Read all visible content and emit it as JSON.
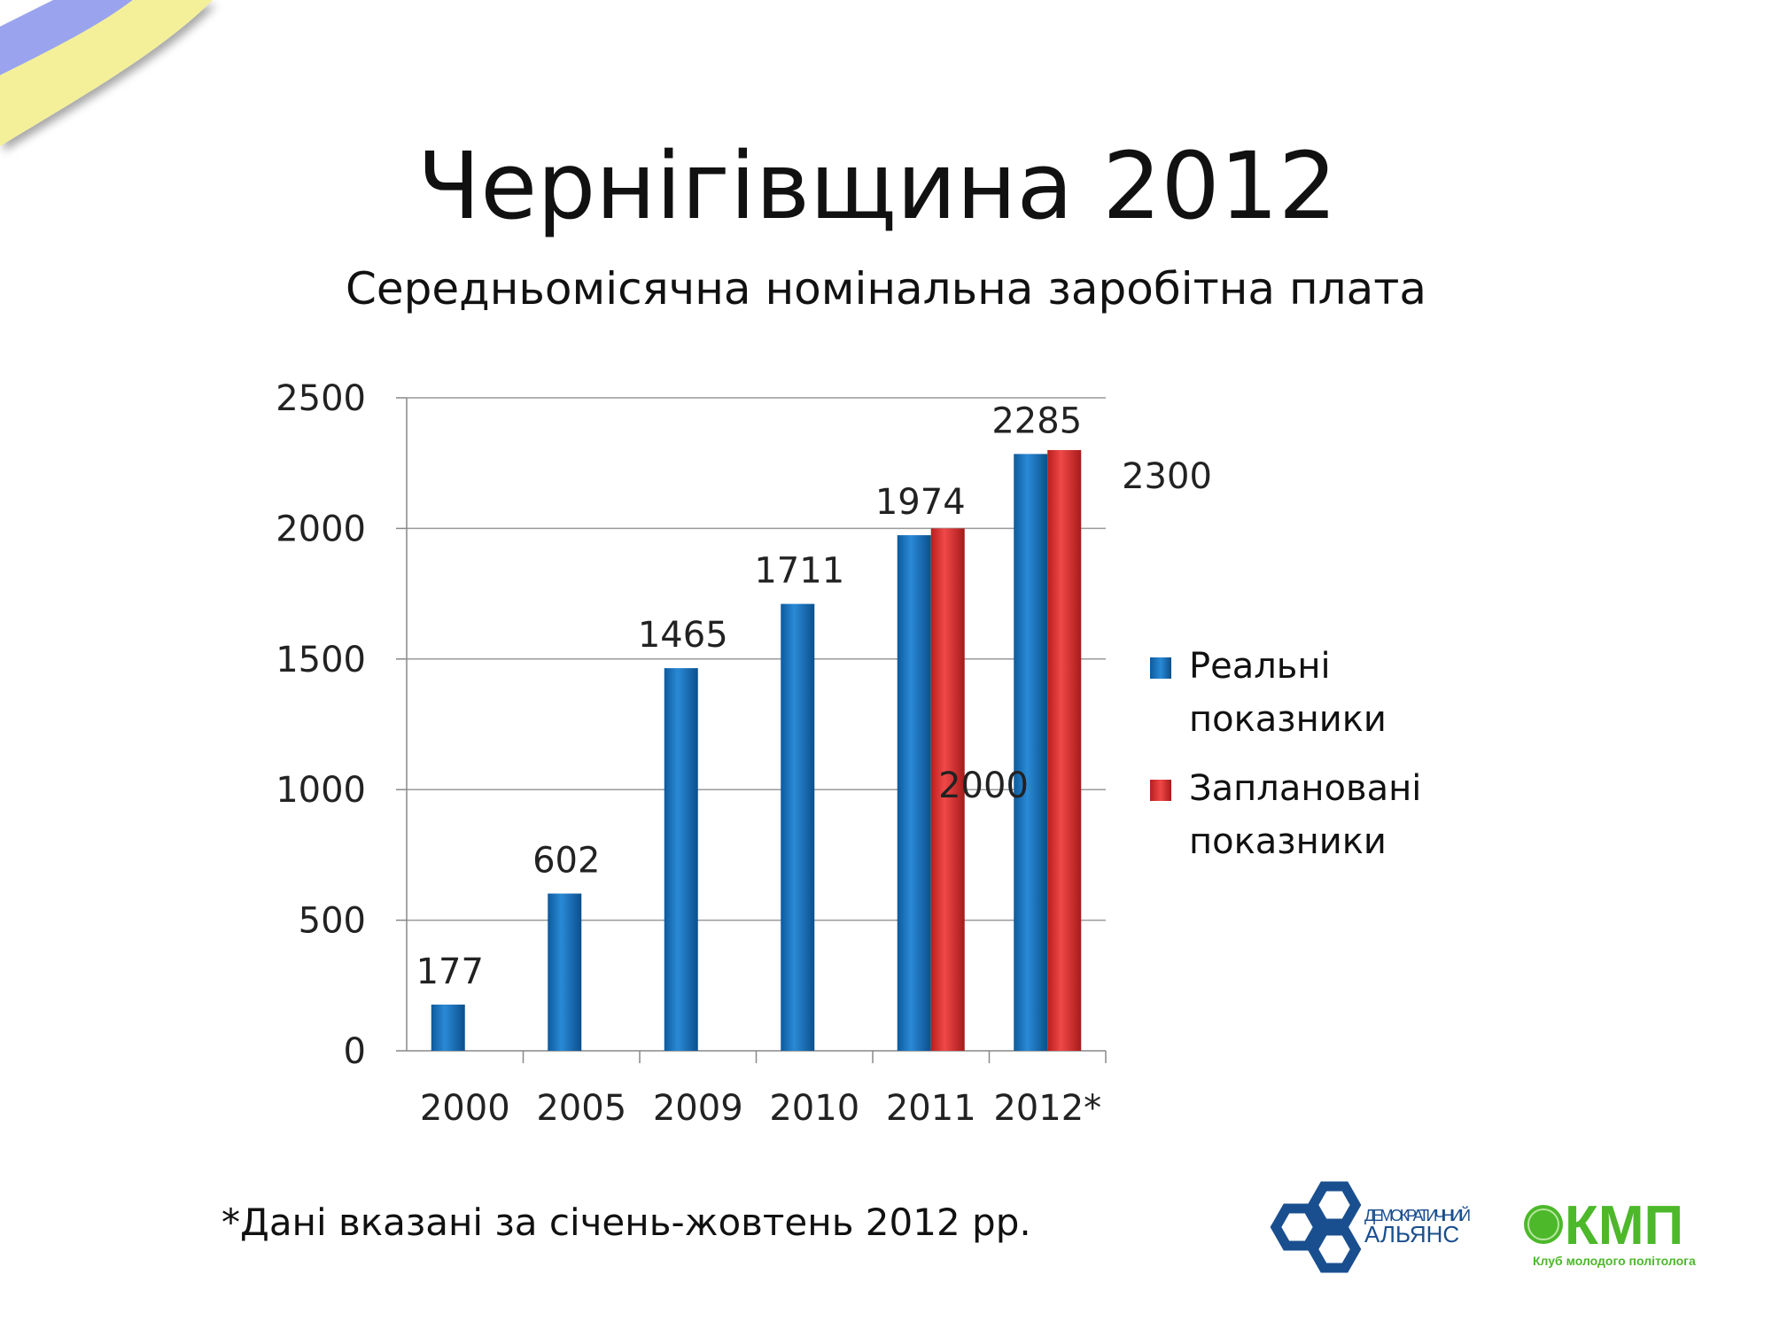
{
  "title": "Чернігівщина 2012",
  "subtitle": "Середньомісячна номінальна заробітна плата",
  "footnote": "*Дані вказані за січень-жовтень 2012 рр.",
  "logos": {
    "left": "ДЕМОКРАТИЧНИЙ АЛЬЯНС",
    "right": "КМП",
    "right_caption": "Клуб молодого політолога"
  },
  "colors": {
    "real": "#1a78c2",
    "planned": "#e03030",
    "ribbon_blue": "#9aa4ee",
    "ribbon_yellow": "#f4f09a"
  },
  "chart_data": {
    "type": "bar",
    "title": "Середньомісячна номінальна заробітна плата",
    "categories": [
      "2000",
      "2005",
      "2009",
      "2010",
      "2011",
      "2012*"
    ],
    "series": [
      {
        "name": "Реальні показники",
        "values": [
          177,
          602,
          1465,
          1711,
          1974,
          2285
        ]
      },
      {
        "name": "Заплановані показники",
        "values": [
          null,
          null,
          null,
          null,
          2000,
          2300
        ]
      }
    ],
    "ylim": [
      0,
      2500
    ],
    "yticks": [
      0,
      500,
      1000,
      1500,
      2000,
      2500
    ],
    "grid": true,
    "legend": "right",
    "legend_labels": [
      {
        "line1": "Реальні",
        "line2": "показники"
      },
      {
        "line1": "Заплановані",
        "line2": "показники"
      }
    ]
  }
}
